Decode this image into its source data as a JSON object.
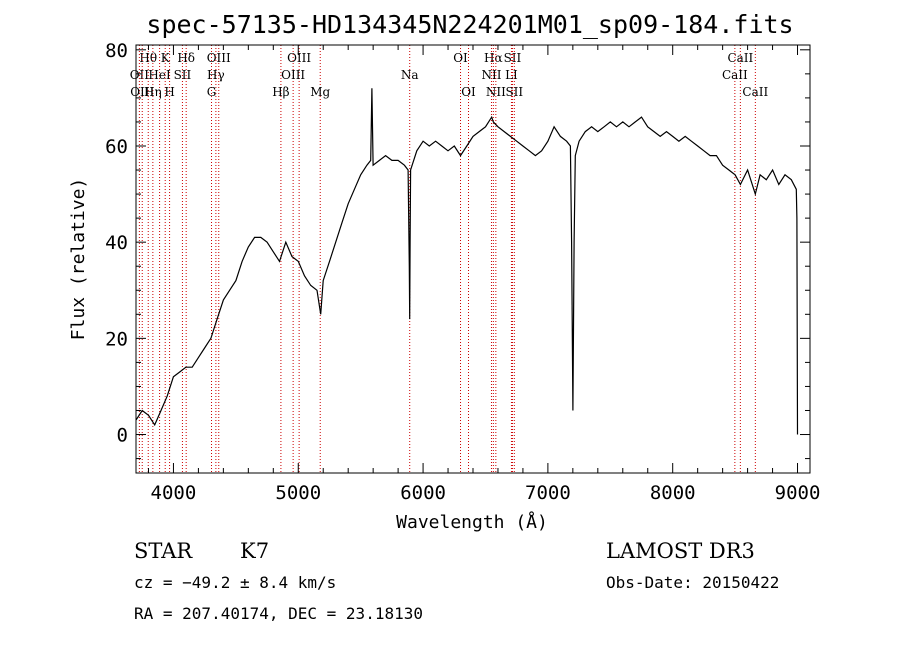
{
  "chart_data": {
    "type": "line",
    "title": "spec-57135-HD134345N224201M01_sp09-184.fits",
    "xlabel": "Wavelength (Å)",
    "ylabel": "Flux (relative)",
    "xlim": [
      3700,
      9100
    ],
    "ylim": [
      -8,
      81
    ],
    "xticks": [
      4000,
      5000,
      6000,
      7000,
      8000,
      9000
    ],
    "yticks": [
      0,
      20,
      40,
      60,
      80
    ],
    "series": [
      {
        "x": [
          3700,
          3750,
          3800,
          3850,
          3900,
          3950,
          4000,
          4050,
          4100,
          4150,
          4200,
          4250,
          4300,
          4350,
          4400,
          4450,
          4500,
          4550,
          4600,
          4650,
          4700,
          4750,
          4800,
          4850,
          4900,
          4950,
          5000,
          5050,
          5100,
          5150,
          5180,
          5200,
          5250,
          5300,
          5350,
          5400,
          5450,
          5500,
          5550,
          5580,
          5590,
          5600,
          5650,
          5700,
          5750,
          5800,
          5850,
          5880,
          5890,
          5893,
          5896,
          5900,
          5950,
          6000,
          6050,
          6100,
          6150,
          6200,
          6250,
          6300,
          6350,
          6400,
          6450,
          6500,
          6550,
          6563,
          6600,
          6650,
          6700,
          6750,
          6800,
          6850,
          6900,
          6950,
          7000,
          7050,
          7100,
          7150,
          7180,
          7190,
          7200,
          7210,
          7220,
          7250,
          7300,
          7350,
          7400,
          7450,
          7500,
          7550,
          7600,
          7650,
          7700,
          7750,
          7800,
          7850,
          7900,
          7950,
          8000,
          8050,
          8100,
          8150,
          8200,
          8250,
          8300,
          8350,
          8400,
          8450,
          8500,
          8542,
          8600,
          8662,
          8700,
          8750,
          8800,
          8850,
          8900,
          8950,
          8990,
          8995,
          9000
        ],
        "y": [
          3,
          5,
          4,
          2,
          5,
          8,
          12,
          13,
          14,
          14,
          16,
          18,
          20,
          24,
          28,
          30,
          32,
          36,
          39,
          41,
          41,
          40,
          38,
          36,
          40,
          37,
          36,
          33,
          31,
          30,
          25,
          32,
          36,
          40,
          44,
          48,
          51,
          54,
          56,
          57,
          72,
          56,
          57,
          58,
          57,
          57,
          56,
          55,
          35,
          24,
          40,
          55,
          59,
          61,
          60,
          61,
          60,
          59,
          60,
          58,
          60,
          62,
          63,
          64,
          66,
          65,
          64,
          63,
          62,
          61,
          60,
          59,
          58,
          59,
          61,
          64,
          62,
          61,
          60,
          40,
          5,
          40,
          58,
          61,
          63,
          64,
          63,
          64,
          65,
          64,
          65,
          64,
          65,
          66,
          64,
          63,
          62,
          63,
          62,
          61,
          62,
          61,
          60,
          59,
          58,
          58,
          56,
          55,
          54,
          52,
          55,
          50,
          54,
          53,
          55,
          52,
          54,
          53,
          51,
          45,
          0
        ]
      }
    ],
    "spectral_lines": [
      {
        "label": "Hθ",
        "x": 3798,
        "row": 1
      },
      {
        "label": "OII",
        "x": 3727,
        "row": 2
      },
      {
        "label": "HeI",
        "x": 3889,
        "row": 2
      },
      {
        "label": "OIII",
        "x": 3750,
        "row": 3
      },
      {
        "label": "Hη",
        "x": 3835,
        "row": 3
      },
      {
        "label": "K",
        "x": 3934,
        "row": 1
      },
      {
        "label": "H",
        "x": 3969,
        "row": 3
      },
      {
        "label": "SII",
        "x": 4072,
        "row": 2
      },
      {
        "label": "Hδ",
        "x": 4102,
        "row": 1
      },
      {
        "label": "OIII",
        "x": 4363,
        "row": 1
      },
      {
        "label": "Hγ",
        "x": 4340,
        "row": 2
      },
      {
        "label": "G",
        "x": 4305,
        "row": 3
      },
      {
        "label": "OIII",
        "x": 5007,
        "row": 1
      },
      {
        "label": "OIII",
        "x": 4959,
        "row": 2
      },
      {
        "label": "Hβ",
        "x": 4861,
        "row": 3
      },
      {
        "label": "Mg",
        "x": 5176,
        "row": 3
      },
      {
        "label": "Na",
        "x": 5893,
        "row": 2
      },
      {
        "label": "OI",
        "x": 6300,
        "row": 1
      },
      {
        "label": "OI",
        "x": 6364,
        "row": 3
      },
      {
        "label": "Hα",
        "x": 6563,
        "row": 1
      },
      {
        "label": "SII",
        "x": 6716,
        "row": 1
      },
      {
        "label": "NII",
        "x": 6548,
        "row": 2
      },
      {
        "label": "LI",
        "x": 6708,
        "row": 2
      },
      {
        "label": "NII",
        "x": 6583,
        "row": 3
      },
      {
        "label": "SII",
        "x": 6731,
        "row": 3
      },
      {
        "label": "CaII",
        "x": 8542,
        "row": 1
      },
      {
        "label": "CaII",
        "x": 8498,
        "row": 2
      },
      {
        "label": "CaII",
        "x": 8662,
        "row": 3
      }
    ]
  },
  "info": {
    "class": "STAR",
    "subclass": "K7",
    "survey": "LAMOST DR3",
    "cz": "cz = −49.2 ± 8.4 km/s",
    "obs_date": "Obs-Date: 20150422",
    "coords": "RA = 207.40174, DEC =  23.18130"
  },
  "colors": {
    "spectrum": "#000000",
    "line_markers": "#cc0000",
    "axes": "#000000"
  }
}
